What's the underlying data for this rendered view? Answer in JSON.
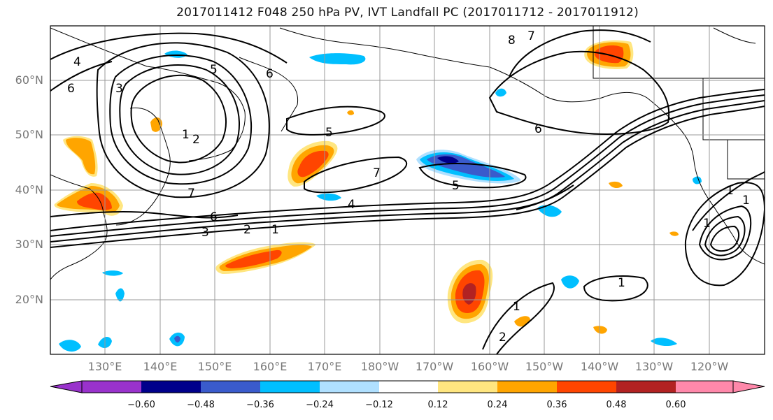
{
  "title": "2017011412 F048 250 hPa PV, IVT Landfall PC (2017011712 - 2017011912)",
  "lat_labels": [
    "60°N",
    "50°N",
    "40°N",
    "30°N",
    "20°N"
  ],
  "lon_labels": [
    "130°E",
    "140°E",
    "150°E",
    "160°E",
    "170°E",
    "180°W",
    "170°W",
    "160°W",
    "150°W",
    "140°W",
    "130°W",
    "120°W"
  ],
  "contour_labels": [
    "4",
    "6",
    "3",
    "5",
    "6",
    "2",
    "1",
    "7",
    "6",
    "3",
    "2",
    "1",
    "5",
    "7",
    "4",
    "5",
    "8",
    "7",
    "6",
    "1",
    "1",
    "2",
    "1",
    "1",
    "1"
  ],
  "colorbar": {
    "ticks": [
      "−0.60",
      "−0.48",
      "−0.36",
      "−0.24",
      "−0.12",
      "0.12",
      "0.24",
      "0.36",
      "0.48",
      "0.60"
    ],
    "colors": [
      "#9932cc",
      "#00008b",
      "#3a5bcc",
      "#00bfff",
      "#b0e0ff",
      "#ffffff",
      "#ffe680",
      "#ffa500",
      "#ff4500",
      "#b22222",
      "#ff88aa"
    ]
  },
  "colors": {
    "contour": "#000000",
    "grid": "#999999",
    "coast": "#000000"
  }
}
